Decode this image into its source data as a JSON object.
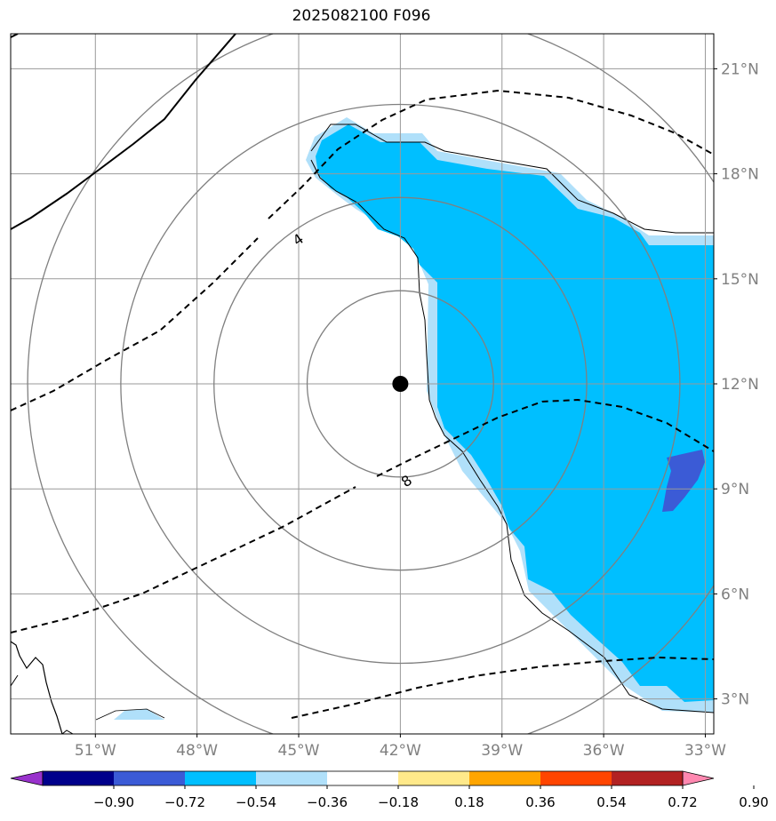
{
  "title": "2025082100 F096",
  "map": {
    "lon_range": [
      -53.5,
      -32.75
    ],
    "lat_range": [
      2.0,
      22.0
    ],
    "center_marker": {
      "lon": -42.0,
      "lat": 12.0
    },
    "lon_ticks": [
      {
        "value": -51,
        "label": "51°W"
      },
      {
        "value": -48,
        "label": "48°W"
      },
      {
        "value": -45,
        "label": "45°W"
      },
      {
        "value": -42,
        "label": "42°W"
      },
      {
        "value": -39,
        "label": "39°W"
      },
      {
        "value": -36,
        "label": "36°W"
      },
      {
        "value": -33,
        "label": "33°W"
      }
    ],
    "lat_ticks": [
      {
        "value": 3,
        "label": "3°N"
      },
      {
        "value": 6,
        "label": "6°N"
      },
      {
        "value": 9,
        "label": "9°N"
      },
      {
        "value": 12,
        "label": "12°N"
      },
      {
        "value": 15,
        "label": "15°N"
      },
      {
        "value": 18,
        "label": "18°N"
      },
      {
        "value": 21,
        "label": "21°N"
      }
    ],
    "range_rings_deg": [
      2.75,
      5.5,
      8.25,
      11.0
    ],
    "contour_labels": [
      {
        "text": "4",
        "lon": -45.0,
        "lat": 16.1
      },
      {
        "text": "8",
        "lon": -41.8,
        "lat": 9.2
      }
    ],
    "colors": {
      "shade_main": "#00bfff",
      "shade_edge": "#b0e0fa",
      "shade_deep": "#3b5bd6",
      "grid": "#999999",
      "ring": "#808080",
      "tick_text": "#808080"
    }
  },
  "colorbar": {
    "levels": [
      "−0.90",
      "−0.72",
      "−0.54",
      "−0.36",
      "−0.18",
      "0.18",
      "0.36",
      "0.54",
      "0.72",
      "0.90"
    ],
    "colors": [
      "#9932cc",
      "#00008b",
      "#3b5bd6",
      "#00bfff",
      "#b0e0fa",
      "#ffffff",
      "#ffe98a",
      "#ffa500",
      "#ff4500",
      "#b22222",
      "#ff88b0"
    ]
  }
}
